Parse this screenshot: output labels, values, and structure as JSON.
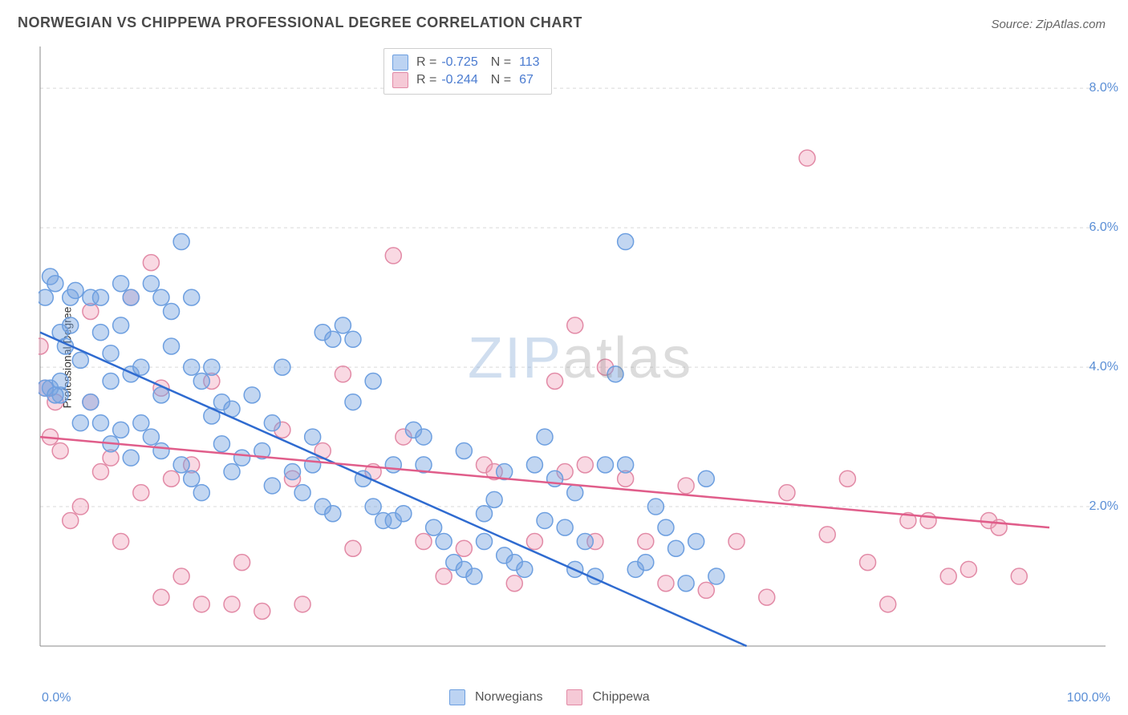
{
  "title": "NORWEGIAN VS CHIPPEWA PROFESSIONAL DEGREE CORRELATION CHART",
  "source": "Source: ZipAtlas.com",
  "ylabel": "Professional Degree",
  "watermark": {
    "part1": "ZIP",
    "part2": "atlas"
  },
  "chart": {
    "type": "scatter",
    "background_color": "#ffffff",
    "grid_color": "#d9d9d9",
    "axis_color": "#888888",
    "tick_label_color": "#5b8fd6",
    "title_color": "#4a4a4a",
    "title_fontsize": 18,
    "label_fontsize": 14,
    "marker_radius": 10,
    "marker_stroke_width": 1.5,
    "line_width": 2.5,
    "xlim": [
      0,
      100
    ],
    "ylim": [
      0,
      8.6
    ],
    "ygrid_at": [
      2,
      4,
      6,
      8
    ],
    "ytick_labels": [
      "2.0%",
      "4.0%",
      "6.0%",
      "8.0%"
    ],
    "xtick_labels": {
      "min": "0.0%",
      "max": "100.0%"
    },
    "legend_top": {
      "rows": [
        {
          "series": "norwegians",
          "r_label": "R =",
          "r_value": "-0.725",
          "n_label": "N =",
          "n_value": "113"
        },
        {
          "series": "chippewa",
          "r_label": "R =",
          "r_value": "-0.244",
          "n_label": "N =",
          "n_value": "67"
        }
      ]
    },
    "legend_bottom": [
      {
        "series": "norwegians",
        "label": "Norwegians"
      },
      {
        "series": "chippewa",
        "label": "Chippewa"
      }
    ],
    "series": {
      "norwegians": {
        "color_fill": "rgba(120,165,225,0.45)",
        "color_stroke": "#6d9fe0",
        "swatch_fill": "#bcd3f2",
        "swatch_stroke": "#6d9fe0",
        "trend": {
          "x1": 0,
          "y1": 4.5,
          "x2": 70,
          "y2": 0.0,
          "color": "#2f6bd0"
        },
        "points": [
          [
            1,
            5.3
          ],
          [
            1.5,
            5.2
          ],
          [
            0.5,
            5.0
          ],
          [
            3,
            5.0
          ],
          [
            3.5,
            5.1
          ],
          [
            4,
            4.1
          ],
          [
            5,
            5.0
          ],
          [
            2,
            4.5
          ],
          [
            2.5,
            4.3
          ],
          [
            1,
            3.7
          ],
          [
            6,
            4.5
          ],
          [
            7,
            3.8
          ],
          [
            8,
            4.6
          ],
          [
            9,
            3.9
          ],
          [
            10,
            4.0
          ],
          [
            10,
            3.2
          ],
          [
            11,
            5.2
          ],
          [
            12,
            5.0
          ],
          [
            13,
            4.3
          ],
          [
            12,
            3.6
          ],
          [
            14,
            5.8
          ],
          [
            15,
            4.0
          ],
          [
            16,
            3.8
          ],
          [
            17,
            3.3
          ],
          [
            18,
            3.5
          ],
          [
            19,
            2.5
          ],
          [
            20,
            2.7
          ],
          [
            21,
            3.6
          ],
          [
            22,
            2.8
          ],
          [
            23,
            3.2
          ],
          [
            24,
            4.0
          ],
          [
            25,
            2.5
          ],
          [
            26,
            2.2
          ],
          [
            27,
            2.6
          ],
          [
            28,
            2.0
          ],
          [
            29,
            1.9
          ],
          [
            30,
            4.6
          ],
          [
            31,
            4.4
          ],
          [
            32,
            2.4
          ],
          [
            33,
            2.0
          ],
          [
            34,
            1.8
          ],
          [
            35,
            2.6
          ],
          [
            35,
            1.8
          ],
          [
            36,
            1.9
          ],
          [
            37,
            3.1
          ],
          [
            38,
            2.6
          ],
          [
            39,
            1.7
          ],
          [
            40,
            1.5
          ],
          [
            41,
            1.2
          ],
          [
            42,
            1.1
          ],
          [
            43,
            1.0
          ],
          [
            44,
            1.9
          ],
          [
            45,
            2.1
          ],
          [
            46,
            1.3
          ],
          [
            47,
            1.2
          ],
          [
            48,
            1.1
          ],
          [
            49,
            2.6
          ],
          [
            50,
            3.0
          ],
          [
            51,
            2.4
          ],
          [
            52,
            1.7
          ],
          [
            53,
            1.1
          ],
          [
            54,
            1.5
          ],
          [
            55,
            1.0
          ],
          [
            56,
            2.6
          ],
          [
            57,
            3.9
          ],
          [
            58,
            2.6
          ],
          [
            59,
            1.1
          ],
          [
            60,
            1.2
          ],
          [
            61,
            2.0
          ],
          [
            62,
            1.7
          ],
          [
            63,
            1.4
          ],
          [
            64,
            0.9
          ],
          [
            65,
            1.5
          ],
          [
            66,
            2.4
          ],
          [
            58,
            5.8
          ],
          [
            67,
            1.0
          ],
          [
            8,
            5.2
          ],
          [
            13,
            4.8
          ],
          [
            2,
            3.6
          ],
          [
            2,
            3.8
          ],
          [
            5,
            3.5
          ],
          [
            6,
            3.2
          ],
          [
            7,
            2.9
          ],
          [
            8,
            3.1
          ],
          [
            9,
            2.7
          ],
          [
            11,
            3.0
          ],
          [
            12,
            2.8
          ],
          [
            14,
            2.6
          ],
          [
            15,
            2.4
          ],
          [
            16,
            2.2
          ],
          [
            18,
            2.9
          ],
          [
            19,
            3.4
          ],
          [
            6,
            5.0
          ],
          [
            7,
            4.2
          ],
          [
            28,
            4.5
          ],
          [
            29,
            4.4
          ],
          [
            17,
            4.0
          ],
          [
            3,
            4.6
          ],
          [
            0.5,
            3.7
          ],
          [
            1.5,
            3.6
          ],
          [
            4,
            3.2
          ],
          [
            9,
            5.0
          ],
          [
            33,
            3.8
          ],
          [
            38,
            3.0
          ],
          [
            42,
            2.8
          ],
          [
            46,
            2.5
          ],
          [
            50,
            1.8
          ],
          [
            53,
            2.2
          ],
          [
            31,
            3.5
          ],
          [
            27,
            3.0
          ],
          [
            23,
            2.3
          ],
          [
            15,
            5.0
          ],
          [
            44,
            1.5
          ]
        ]
      },
      "chippewa": {
        "color_fill": "rgba(240,160,185,0.40)",
        "color_stroke": "#e28aa6",
        "swatch_fill": "#f5c9d6",
        "swatch_stroke": "#e28aa6",
        "trend": {
          "x1": 0,
          "y1": 3.0,
          "x2": 100,
          "y2": 1.7,
          "color": "#e05d8a"
        },
        "points": [
          [
            0,
            4.3
          ],
          [
            0.5,
            3.7
          ],
          [
            1,
            3.0
          ],
          [
            1.5,
            3.5
          ],
          [
            2,
            2.8
          ],
          [
            3,
            1.8
          ],
          [
            4,
            2.0
          ],
          [
            5,
            4.8
          ],
          [
            6,
            2.5
          ],
          [
            7,
            2.7
          ],
          [
            8,
            1.5
          ],
          [
            9,
            5.0
          ],
          [
            10,
            2.2
          ],
          [
            11,
            5.5
          ],
          [
            12,
            0.7
          ],
          [
            13,
            2.4
          ],
          [
            14,
            1.0
          ],
          [
            15,
            2.6
          ],
          [
            16,
            0.6
          ],
          [
            17,
            3.8
          ],
          [
            19,
            0.6
          ],
          [
            20,
            1.2
          ],
          [
            22,
            0.5
          ],
          [
            24,
            3.1
          ],
          [
            25,
            2.4
          ],
          [
            26,
            0.6
          ],
          [
            28,
            2.8
          ],
          [
            30,
            3.9
          ],
          [
            31,
            1.4
          ],
          [
            33,
            2.5
          ],
          [
            35,
            5.6
          ],
          [
            36,
            3.0
          ],
          [
            38,
            1.5
          ],
          [
            40,
            1.0
          ],
          [
            42,
            1.4
          ],
          [
            44,
            2.6
          ],
          [
            45,
            2.5
          ],
          [
            47,
            0.9
          ],
          [
            49,
            1.5
          ],
          [
            51,
            3.8
          ],
          [
            52,
            2.5
          ],
          [
            53,
            4.6
          ],
          [
            54,
            2.6
          ],
          [
            55,
            1.5
          ],
          [
            56,
            4.0
          ],
          [
            58,
            2.4
          ],
          [
            60,
            1.5
          ],
          [
            62,
            0.9
          ],
          [
            64,
            2.3
          ],
          [
            66,
            0.8
          ],
          [
            69,
            1.5
          ],
          [
            72,
            0.7
          ],
          [
            74,
            2.2
          ],
          [
            76,
            7.0
          ],
          [
            78,
            1.6
          ],
          [
            80,
            2.4
          ],
          [
            82,
            1.2
          ],
          [
            84,
            0.6
          ],
          [
            86,
            1.8
          ],
          [
            88,
            1.8
          ],
          [
            90,
            1.0
          ],
          [
            92,
            1.1
          ],
          [
            94,
            1.8
          ],
          [
            95,
            1.7
          ],
          [
            97,
            1.0
          ],
          [
            12,
            3.7
          ],
          [
            5,
            3.5
          ]
        ]
      }
    }
  }
}
